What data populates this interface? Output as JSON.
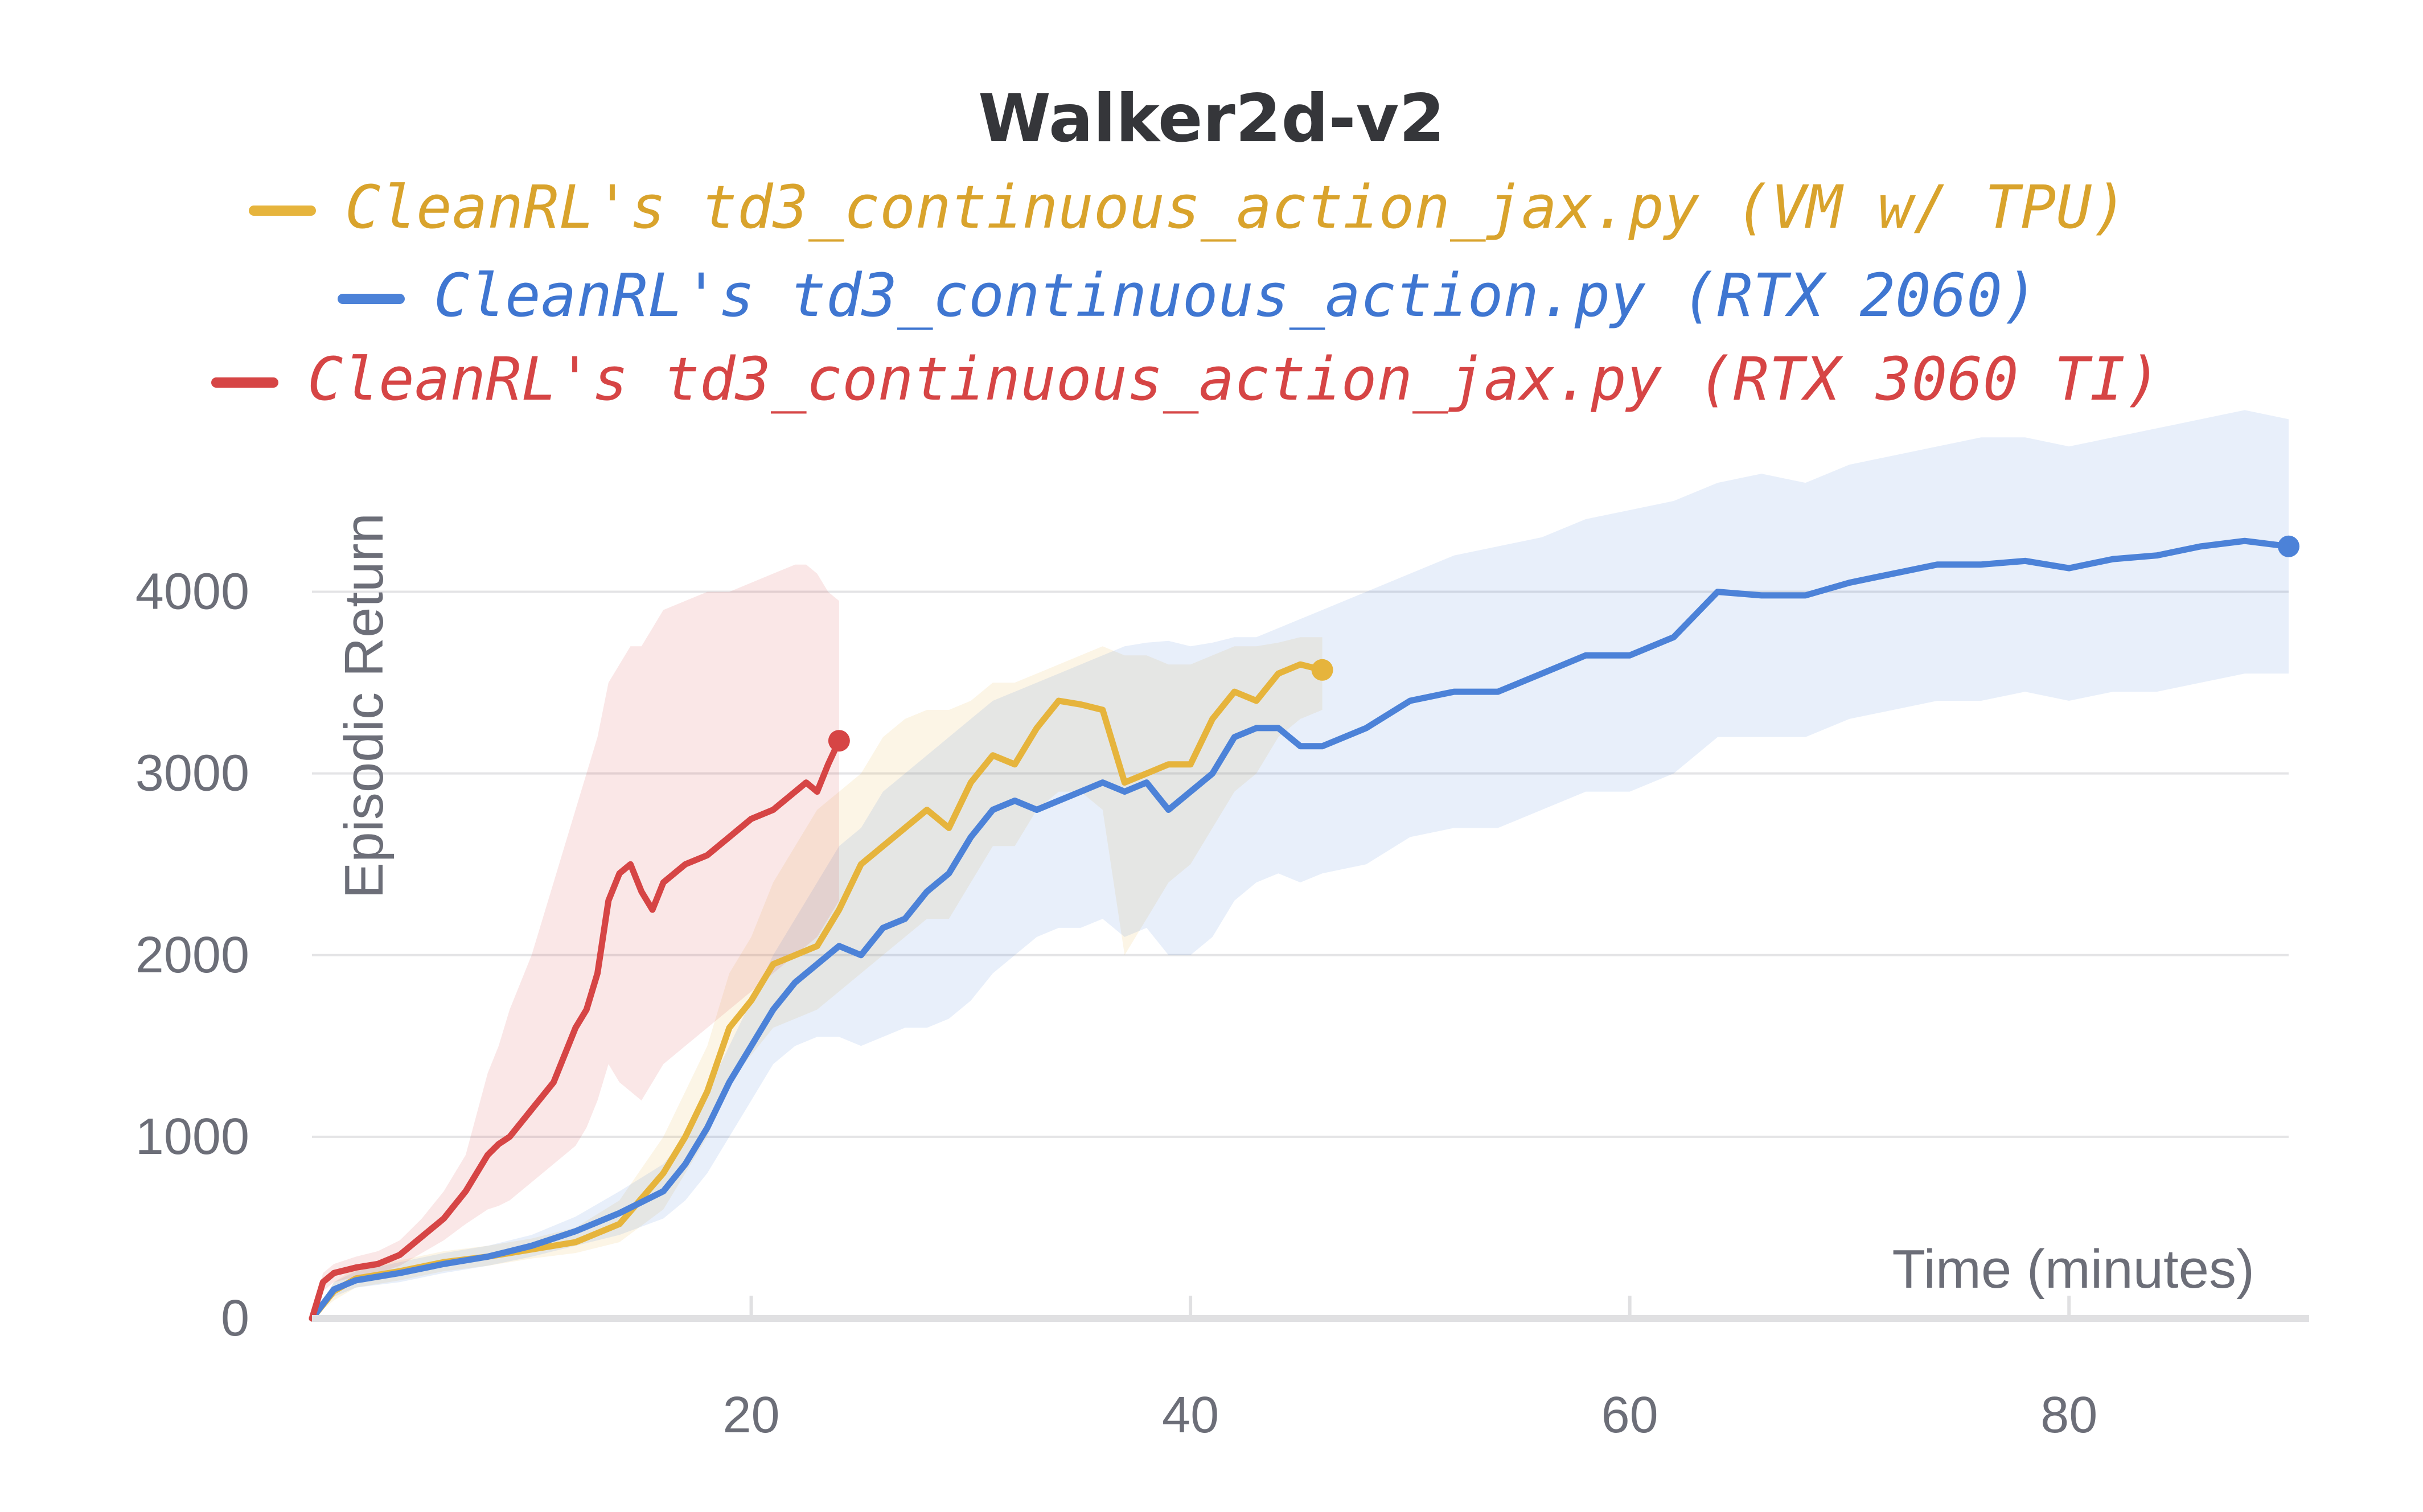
{
  "chart_data": {
    "type": "line",
    "title": "Walker2d-v2",
    "xlabel": "Time (minutes)",
    "ylabel": "Episodic Return",
    "xlim": [
      0,
      90
    ],
    "ylim": [
      0,
      4500
    ],
    "x_ticks": [
      20,
      40,
      60,
      80
    ],
    "x_tick_labels": [
      "20",
      "40",
      "60",
      "80"
    ],
    "y_ticks": [
      0,
      1000,
      2000,
      3000,
      4000
    ],
    "y_tick_labels": [
      "0",
      "1000",
      "2000",
      "3000",
      "4000"
    ],
    "grid": true,
    "legend_position": "top",
    "series": [
      {
        "name": "CleanRL's td3_continuous_action_jax.py (VM w/ TPU)",
        "color": "#e6b43c",
        "text_color": "#d9a32c",
        "x": [
          0,
          1,
          2,
          4,
          6,
          8,
          10,
          12,
          14,
          16,
          17,
          18,
          19,
          20,
          21,
          22,
          23,
          24,
          25,
          26,
          27,
          28,
          29,
          30,
          31,
          32,
          33,
          34,
          35,
          36,
          37,
          38,
          39,
          40,
          41,
          42,
          43,
          44,
          45,
          46
        ],
        "y": [
          0,
          150,
          220,
          260,
          310,
          340,
          380,
          420,
          520,
          800,
          1000,
          1250,
          1600,
          1750,
          1950,
          2000,
          2050,
          2250,
          2500,
          2600,
          2700,
          2800,
          2700,
          2950,
          3100,
          3050,
          3250,
          3400,
          3380,
          3350,
          2950,
          3000,
          3050,
          3050,
          3300,
          3450,
          3400,
          3550,
          3600,
          3570
        ],
        "upper": [
          0,
          200,
          280,
          320,
          370,
          400,
          440,
          500,
          650,
          1000,
          1250,
          1500,
          1900,
          2100,
          2400,
          2600,
          2800,
          2900,
          3000,
          3200,
          3300,
          3350,
          3350,
          3400,
          3500,
          3500,
          3550,
          3600,
          3650,
          3700,
          3650,
          3650,
          3600,
          3600,
          3650,
          3700,
          3700,
          3720,
          3750,
          3750
        ],
        "lower": [
          0,
          100,
          170,
          210,
          260,
          290,
          330,
          360,
          420,
          600,
          800,
          1000,
          1300,
          1450,
          1600,
          1650,
          1700,
          1800,
          1900,
          2000,
          2100,
          2200,
          2200,
          2400,
          2600,
          2600,
          2800,
          2900,
          2900,
          2800,
          2000,
          2200,
          2400,
          2500,
          2700,
          2900,
          3000,
          3200,
          3300,
          3350
        ]
      },
      {
        "name": "CleanRL's td3_continuous_action.py (RTX 2060)",
        "color": "#4c82d8",
        "text_color": "#3f76d1",
        "x": [
          0,
          1,
          2,
          4,
          6,
          8,
          10,
          12,
          14,
          16,
          17,
          18,
          19,
          20,
          21,
          22,
          23,
          24,
          25,
          26,
          27,
          28,
          29,
          30,
          31,
          32,
          33,
          34,
          35,
          36,
          37,
          38,
          39,
          40,
          41,
          42,
          43,
          44,
          45,
          46,
          48,
          50,
          52,
          54,
          56,
          58,
          60,
          62,
          64,
          66,
          68,
          70,
          72,
          74,
          76,
          78,
          80,
          82,
          84,
          86,
          88,
          90
        ],
        "y": [
          0,
          160,
          210,
          250,
          300,
          340,
          400,
          480,
          580,
          700,
          850,
          1050,
          1300,
          1500,
          1700,
          1850,
          1950,
          2050,
          2000,
          2150,
          2200,
          2350,
          2450,
          2650,
          2800,
          2850,
          2800,
          2850,
          2900,
          2950,
          2900,
          2950,
          2800,
          2900,
          3000,
          3200,
          3250,
          3250,
          3150,
          3150,
          3250,
          3400,
          3450,
          3450,
          3550,
          3650,
          3650,
          3750,
          4000,
          3980,
          3980,
          4050,
          4100,
          4150,
          4150,
          4170,
          4130,
          4180,
          4200,
          4250,
          4280,
          4250
        ],
        "upper": [
          0,
          200,
          260,
          310,
          360,
          400,
          460,
          560,
          700,
          850,
          1000,
          1250,
          1500,
          1750,
          2000,
          2200,
          2400,
          2600,
          2700,
          2900,
          3000,
          3100,
          3200,
          3300,
          3400,
          3450,
          3500,
          3550,
          3600,
          3650,
          3700,
          3720,
          3730,
          3700,
          3720,
          3750,
          3750,
          3800,
          3850,
          3900,
          4000,
          4100,
          4200,
          4250,
          4300,
          4400,
          4450,
          4500,
          4600,
          4650,
          4600,
          4700,
          4750,
          4800,
          4850,
          4850,
          4800,
          4850,
          4900,
          4950,
          5000,
          4950
        ],
        "lower": [
          0,
          120,
          170,
          200,
          250,
          290,
          340,
          400,
          460,
          550,
          650,
          800,
          1000,
          1200,
          1400,
          1500,
          1550,
          1550,
          1500,
          1550,
          1600,
          1600,
          1650,
          1750,
          1900,
          2000,
          2100,
          2150,
          2150,
          2200,
          2100,
          2150,
          2000,
          2000,
          2100,
          2300,
          2400,
          2450,
          2400,
          2450,
          2500,
          2650,
          2700,
          2700,
          2800,
          2900,
          2900,
          3000,
          3200,
          3200,
          3200,
          3300,
          3350,
          3400,
          3400,
          3450,
          3400,
          3450,
          3450,
          3500,
          3550,
          3550
        ]
      },
      {
        "name": "CleanRL's td3_continuous_action_jax.py (RTX 3060 TI)",
        "color": "#d64545",
        "text_color": "#d64545",
        "x": [
          0,
          0.5,
          1,
          2,
          3,
          4,
          5,
          6,
          7,
          8,
          8.5,
          9,
          10,
          11,
          12,
          12.5,
          13,
          13.5,
          14,
          14.5,
          15,
          15.5,
          16,
          17,
          18,
          19,
          20,
          21,
          22,
          22.5,
          23,
          23.5,
          24
        ],
        "y": [
          0,
          200,
          250,
          280,
          300,
          350,
          450,
          550,
          700,
          900,
          960,
          1000,
          1150,
          1300,
          1600,
          1700,
          1900,
          2300,
          2450,
          2500,
          2350,
          2250,
          2400,
          2500,
          2550,
          2650,
          2750,
          2800,
          2900,
          2950,
          2900,
          3050,
          3180
        ],
        "upper": [
          0,
          250,
          300,
          340,
          370,
          430,
          550,
          700,
          900,
          1350,
          1500,
          1700,
          2000,
          2400,
          2800,
          3000,
          3200,
          3500,
          3600,
          3700,
          3700,
          3800,
          3900,
          3950,
          4000,
          4000,
          4050,
          4100,
          4150,
          4150,
          4100,
          4000,
          3950
        ],
        "lower": [
          0,
          150,
          200,
          230,
          250,
          290,
          360,
          430,
          520,
          600,
          620,
          650,
          750,
          850,
          950,
          1050,
          1200,
          1400,
          1300,
          1250,
          1200,
          1300,
          1400,
          1500,
          1600,
          1700,
          1800,
          1900,
          2000,
          2050,
          2100,
          2200,
          2300
        ]
      }
    ]
  }
}
